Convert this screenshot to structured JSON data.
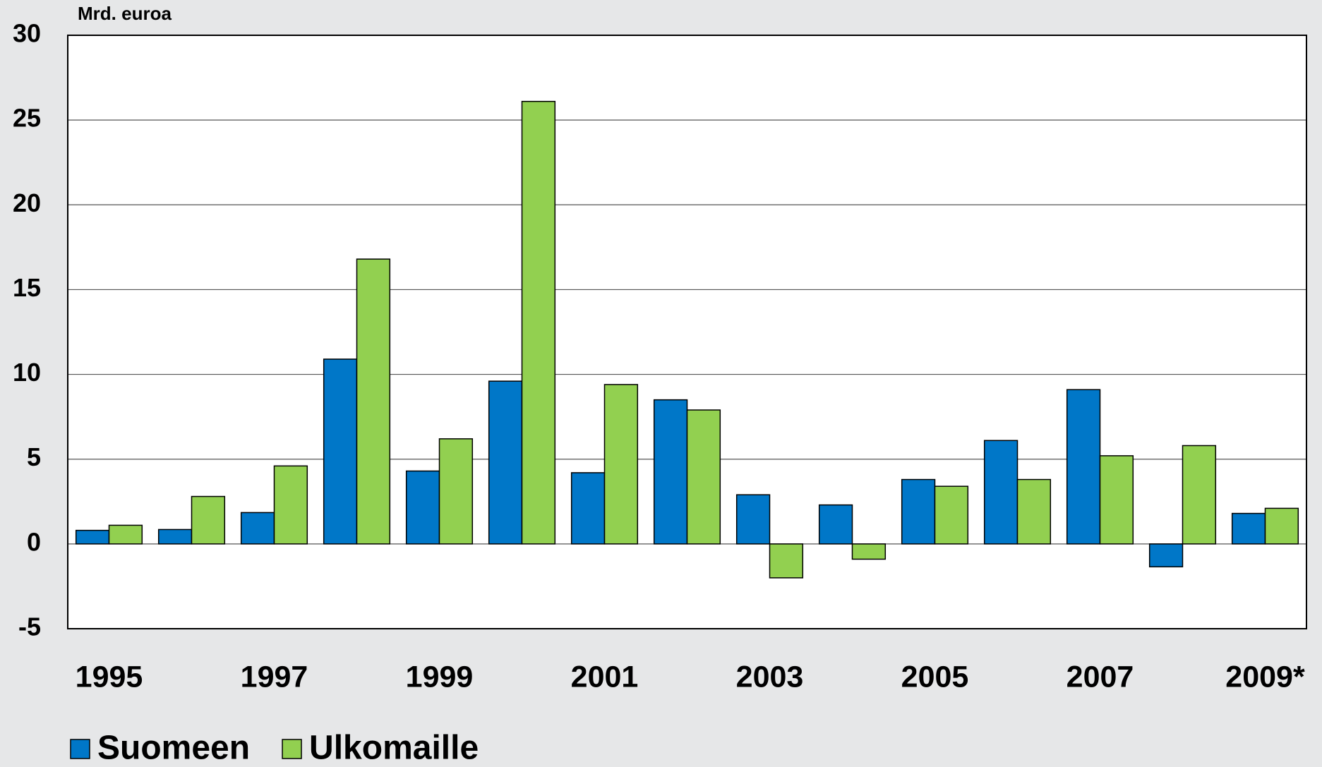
{
  "chart_data": {
    "type": "bar",
    "y_label": "Mrd. euroa",
    "categories": [
      "1995",
      null,
      "1997",
      null,
      "1999",
      null,
      "2001",
      null,
      "2003",
      null,
      "2005",
      null,
      "2007",
      null,
      "2009*"
    ],
    "series": [
      {
        "name": "Suomeen",
        "color": "#0077c8",
        "values": [
          0.8,
          0.85,
          1.85,
          10.9,
          4.3,
          9.6,
          4.2,
          8.5,
          2.9,
          2.3,
          3.8,
          6.1,
          9.1,
          -1.35,
          1.8
        ]
      },
      {
        "name": "Ulkomaille",
        "color": "#92d050",
        "values": [
          1.1,
          2.8,
          4.6,
          16.8,
          6.2,
          26.1,
          9.4,
          7.9,
          -2.0,
          -0.9,
          3.4,
          3.8,
          5.2,
          5.8,
          2.1
        ]
      }
    ],
    "ylim": [
      -5,
      30
    ],
    "yticks": [
      -5,
      0,
      5,
      10,
      15,
      20,
      25,
      30
    ],
    "grid": true,
    "legend": "bottom"
  }
}
